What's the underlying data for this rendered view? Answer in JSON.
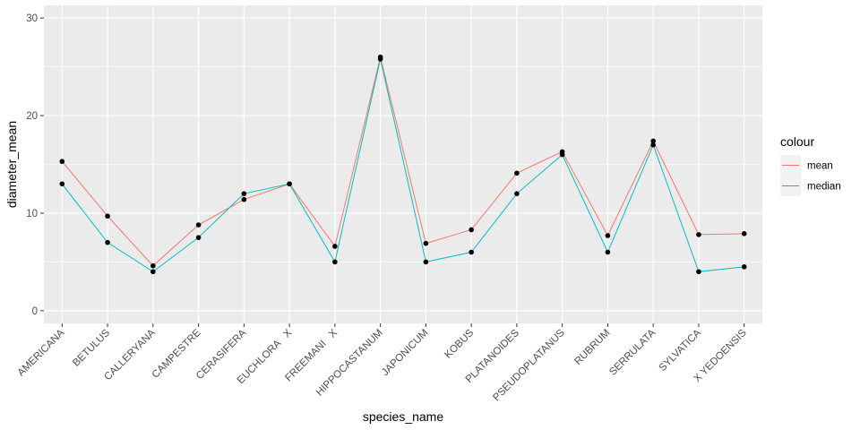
{
  "chart_data": {
    "type": "line",
    "xlabel": "species_name",
    "ylabel": "diameter_mean",
    "ylim": [
      -1.3,
      31.3
    ],
    "yticks": [
      0,
      10,
      20,
      30
    ],
    "grid": true,
    "legend_position": "right",
    "legend_title": "colour",
    "categories": [
      "AMERICANA",
      "BETULUS",
      "CALLERYANA",
      "CAMPESTRE",
      "CERASIFERA",
      "EUCHLORA   X",
      "FREEMANI   X",
      "HIPPOCASTANUM",
      "JAPONICUM",
      "KOBUS",
      "PLATANOIDES",
      "PSEUDOPLATANUS",
      "RUBRUM",
      "SERRULATA",
      "SYLVATICA",
      "X YEDOENSIS"
    ],
    "series": [
      {
        "name": "mean",
        "color": "#F8766D",
        "values": [
          15.3,
          9.7,
          4.6,
          8.8,
          11.4,
          13.0,
          6.6,
          26.0,
          6.9,
          8.3,
          14.1,
          16.3,
          7.7,
          17.4,
          7.8,
          7.9
        ]
      },
      {
        "name": "median",
        "color": "#00BFC4",
        "values": [
          13.0,
          7.0,
          4.0,
          7.5,
          12.0,
          13.0,
          5.0,
          25.8,
          5.0,
          6.0,
          12.0,
          16.0,
          6.0,
          17.0,
          4.0,
          4.5
        ]
      }
    ],
    "point_color": "#000000",
    "panel_color": "#EBEBEB",
    "grid_color": "#FFFFFF"
  }
}
